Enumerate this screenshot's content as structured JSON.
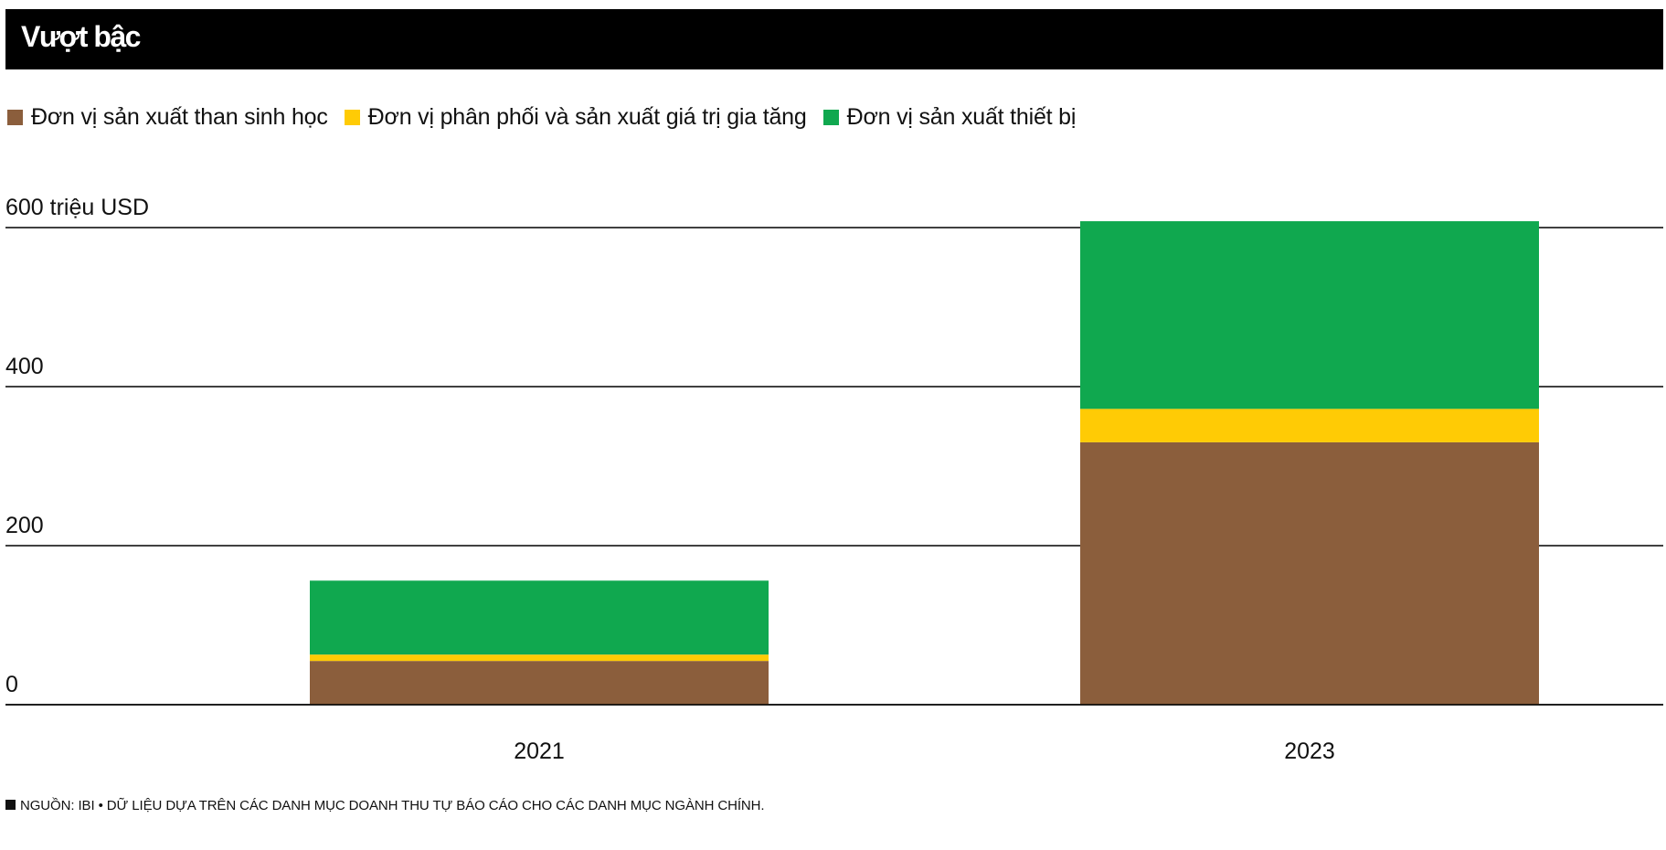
{
  "header": {
    "title": "Vượt bậc"
  },
  "colors": {
    "biochar": "#8b5e3c",
    "distribution": "#ffcb05",
    "equipment": "#10a84f",
    "background": "#ffffff",
    "title_bar": "#000000"
  },
  "chart_data": {
    "type": "bar",
    "stacked": true,
    "title": "Vượt bậc",
    "categories": [
      "2021",
      "2023"
    ],
    "series": [
      {
        "name": "Đơn vị sản xuất than sinh học",
        "color_key": "biochar",
        "values": [
          55,
          330
        ]
      },
      {
        "name": "Đơn vị phân phối và sản xuất giá trị gia tăng",
        "color_key": "distribution",
        "values": [
          8,
          42
        ]
      },
      {
        "name": "Đơn vị sản xuất thiết bị",
        "color_key": "equipment",
        "values": [
          93,
          236
        ]
      }
    ],
    "y_ticks": [
      {
        "value": 0,
        "label": "0"
      },
      {
        "value": 200,
        "label": "200"
      },
      {
        "value": 400,
        "label": "400"
      },
      {
        "value": 600,
        "label": "600 triệu USD"
      }
    ],
    "ylim": [
      0,
      600
    ],
    "xlabel": "",
    "ylabel": "triệu USD",
    "grid": true,
    "legend_position": "top-left"
  },
  "footer": {
    "source": "NGUỒN: IBI • DỮ LIỆU DỰA TRÊN CÁC DANH MỤC DOANH THU TỰ BÁO CÁO CHO CÁC DANH MỤC NGÀNH CHÍNH."
  }
}
